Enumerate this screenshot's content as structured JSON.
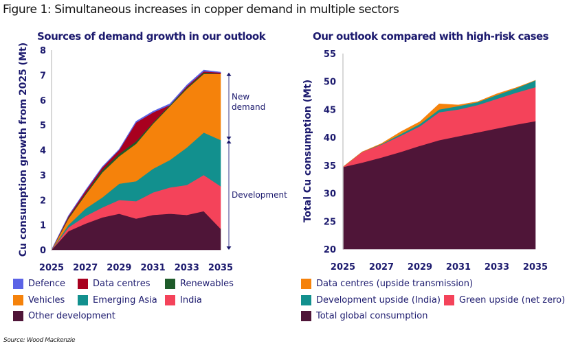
{
  "figure": {
    "title": "Figure 1: Simultaneous increases in copper demand in multiple sectors",
    "source": "Source: Wood Mackenzie"
  },
  "chart_data": [
    {
      "type": "area",
      "stacked": true,
      "title": "Sources of demand growth in our outlook",
      "xlabel": "",
      "ylabel": "Cu consumption growth from 2025 (Mt)",
      "x": [
        2025,
        2026,
        2027,
        2028,
        2029,
        2030,
        2031,
        2032,
        2033,
        2034,
        2035
      ],
      "xticks": [
        "2025",
        "2027",
        "2029",
        "2031",
        "2033",
        "2035"
      ],
      "yticks": [
        "0",
        "1",
        "2",
        "3",
        "4",
        "5",
        "6",
        "7",
        "8"
      ],
      "ylim": [
        0,
        8
      ],
      "grid": false,
      "legend_position": "bottom",
      "series": [
        {
          "name": "Other development",
          "color": "#4f1538",
          "values": [
            0,
            0.75,
            1.05,
            1.3,
            1.45,
            1.25,
            1.4,
            1.45,
            1.4,
            1.55,
            0.85
          ]
        },
        {
          "name": "India",
          "color": "#f4435a",
          "values": [
            0,
            0.15,
            0.3,
            0.4,
            0.55,
            0.7,
            0.9,
            1.05,
            1.2,
            1.45,
            1.7
          ]
        },
        {
          "name": "Emerging Asia",
          "color": "#12908e",
          "values": [
            0,
            0.1,
            0.3,
            0.4,
            0.65,
            0.8,
            0.95,
            1.1,
            1.5,
            1.7,
            1.85
          ]
        },
        {
          "name": "Vehicles",
          "color": "#f5820b",
          "values": [
            0,
            0.25,
            0.55,
            1.0,
            1.1,
            1.5,
            1.8,
            2.15,
            2.35,
            2.35,
            2.65
          ]
        },
        {
          "name": "Renewables",
          "color": "#1e5b2a",
          "values": [
            0,
            0.05,
            0.05,
            0.1,
            0.1,
            0.1,
            0.05,
            0.05,
            0.05,
            0.05,
            0.0
          ]
        },
        {
          "name": "Data centres",
          "color": "#a8001f",
          "values": [
            0,
            0.05,
            0.1,
            0.1,
            0.15,
            0.75,
            0.4,
            0.0,
            0.05,
            0.05,
            0.05
          ]
        },
        {
          "name": "Defence",
          "color": "#5b63e6",
          "values": [
            0,
            0.02,
            0.03,
            0.03,
            0.03,
            0.05,
            0.05,
            0.05,
            0.05,
            0.05,
            0.02
          ]
        }
      ],
      "annotations": [
        {
          "label": "New demand",
          "range": [
            4.4,
            7.1
          ]
        },
        {
          "label": "Development",
          "range": [
            0,
            4.4
          ]
        }
      ],
      "legend": [
        {
          "name": "Defence",
          "color": "#5b63e6"
        },
        {
          "name": "Data centres",
          "color": "#a8001f"
        },
        {
          "name": "Renewables",
          "color": "#1e5b2a"
        },
        {
          "name": "Vehicles",
          "color": "#f5820b"
        },
        {
          "name": "Emerging Asia",
          "color": "#12908e"
        },
        {
          "name": "India",
          "color": "#f4435a"
        },
        {
          "name": "Other development",
          "color": "#4f1538"
        }
      ]
    },
    {
      "type": "area",
      "stacked": true,
      "title": "Our outlook compared with high-risk cases",
      "xlabel": "",
      "ylabel": "Total Cu consumption (Mt)",
      "x": [
        2025,
        2026,
        2027,
        2028,
        2029,
        2030,
        2031,
        2032,
        2033,
        2034,
        2035
      ],
      "xticks": [
        "2025",
        "2027",
        "2029",
        "2031",
        "2033",
        "2035"
      ],
      "yticks": [
        "20",
        "25",
        "30",
        "35",
        "40",
        "45",
        "50",
        "55"
      ],
      "ylim": [
        20,
        55
      ],
      "grid": false,
      "legend_position": "bottom",
      "series": [
        {
          "name": "Total global consumption",
          "color": "#4f1538",
          "values": [
            34.7,
            35.5,
            36.4,
            37.4,
            38.5,
            39.5,
            40.2,
            40.9,
            41.6,
            42.3,
            42.9
          ]
        },
        {
          "name": "Green upside (net zero)",
          "color": "#f4435a",
          "values": [
            0,
            1.9,
            2.3,
            2.9,
            3.5,
            5.0,
            4.8,
            4.9,
            5.3,
            5.7,
            6.1
          ]
        },
        {
          "name": "Development upside (India)",
          "color": "#12908e",
          "values": [
            0,
            0,
            0.1,
            0.3,
            0.4,
            0.5,
            0.6,
            0.5,
            0.7,
            0.8,
            1.2
          ]
        },
        {
          "name": "Data centres (upside transmission)",
          "color": "#f5820b",
          "values": [
            0,
            0,
            0.1,
            0.4,
            0.4,
            1.0,
            0.2,
            0.1,
            0.2,
            0.1,
            0.0
          ]
        }
      ],
      "legend": [
        {
          "name": "Data centres (upside transmission)",
          "color": "#f5820b"
        },
        {
          "name": "Development upside (India)",
          "color": "#12908e"
        },
        {
          "name": "Green upside (net zero)",
          "color": "#f4435a"
        },
        {
          "name": "Total global consumption",
          "color": "#4f1538"
        }
      ]
    }
  ]
}
